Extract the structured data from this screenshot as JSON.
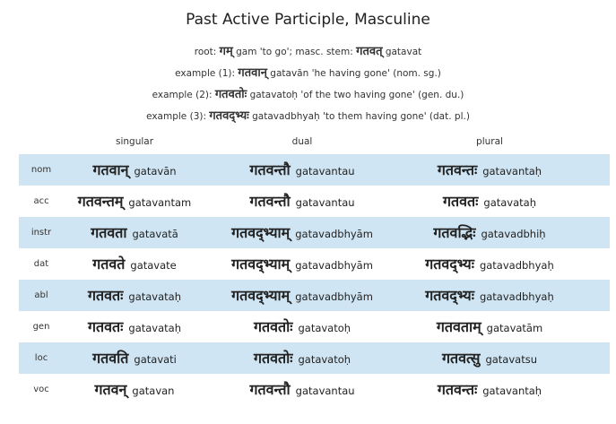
{
  "title": "Past Active Participle, Masculine",
  "root_line": {
    "prefix": "root: ",
    "root_deva": "गम्",
    "root_gloss": " gam 'to go'; masc. stem: ",
    "stem_deva": "गतवत्",
    "stem_translit": " gatavat"
  },
  "examples": [
    {
      "prefix": "example (1): ",
      "deva": "गतवान्",
      "gloss": " gatavān 'he having gone' (nom. sg.)"
    },
    {
      "prefix": "example (2): ",
      "deva": "गतवतोः",
      "gloss": " gatavatoḥ 'of the two having gone' (gen. du.)"
    },
    {
      "prefix": "example (3): ",
      "deva": "गतवद्भ्यः",
      "gloss": " gatavadbhyaḥ 'to them having gone' (dat. pl.)"
    }
  ],
  "table": {
    "headers": {
      "singular": "singular",
      "dual": "dual",
      "plural": "plural"
    },
    "rows": [
      {
        "case": "nom",
        "sg": {
          "deva": "गतवान्",
          "latin": "gatavān"
        },
        "du": {
          "deva": "गतवन्तौ",
          "latin": "gatavantau"
        },
        "pl": {
          "deva": "गतवन्तः",
          "latin": "gatavantaḥ"
        }
      },
      {
        "case": "acc",
        "sg": {
          "deva": "गतवन्तम्",
          "latin": "gatavantam"
        },
        "du": {
          "deva": "गतवन्तौ",
          "latin": "gatavantau"
        },
        "pl": {
          "deva": "गतवतः",
          "latin": "gatavataḥ"
        }
      },
      {
        "case": "instr",
        "sg": {
          "deva": "गतवता",
          "latin": "gatavatā"
        },
        "du": {
          "deva": "गतवद्भ्याम्",
          "latin": "gatavadbhyām"
        },
        "pl": {
          "deva": "गतवद्भिः",
          "latin": "gatavadbhiḥ"
        }
      },
      {
        "case": "dat",
        "sg": {
          "deva": "गतवते",
          "latin": "gatavate"
        },
        "du": {
          "deva": "गतवद्भ्याम्",
          "latin": "gatavadbhyām"
        },
        "pl": {
          "deva": "गतवद्भ्यः",
          "latin": "gatavadbhyaḥ"
        }
      },
      {
        "case": "abl",
        "sg": {
          "deva": "गतवतः",
          "latin": "gatavataḥ"
        },
        "du": {
          "deva": "गतवद्भ्याम्",
          "latin": "gatavadbhyām"
        },
        "pl": {
          "deva": "गतवद्भ्यः",
          "latin": "gatavadbhyaḥ"
        }
      },
      {
        "case": "gen",
        "sg": {
          "deva": "गतवतः",
          "latin": "gatavataḥ"
        },
        "du": {
          "deva": "गतवतोः",
          "latin": "gatavatoḥ"
        },
        "pl": {
          "deva": "गतवताम्",
          "latin": "gatavatām"
        }
      },
      {
        "case": "loc",
        "sg": {
          "deva": "गतवति",
          "latin": "gatavati"
        },
        "du": {
          "deva": "गतवतोः",
          "latin": "gatavatoḥ"
        },
        "pl": {
          "deva": "गतवत्सु",
          "latin": "gatavatsu"
        }
      },
      {
        "case": "voc",
        "sg": {
          "deva": "गतवन्",
          "latin": "gatavan"
        },
        "du": {
          "deva": "गतवन्तौ",
          "latin": "gatavantau"
        },
        "pl": {
          "deva": "गतवन्तः",
          "latin": "gatavantaḥ"
        }
      }
    ]
  },
  "colors": {
    "row_shade": "#cfe5f3"
  }
}
